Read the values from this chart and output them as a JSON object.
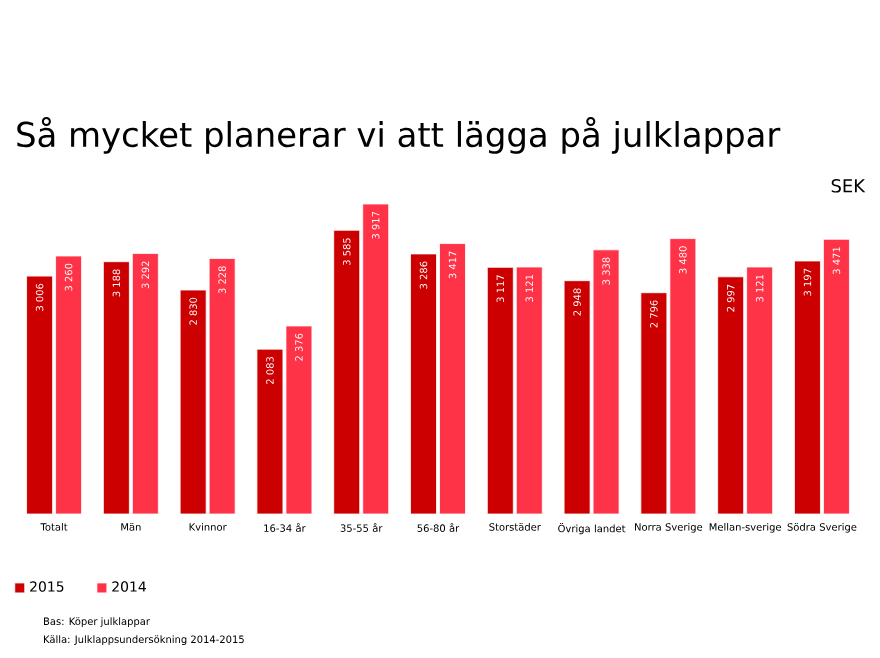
{
  "chart_data": {
    "type": "bar",
    "title": "Så mycket planerar vi att lägga på julklappar",
    "categories": [
      "Totalt",
      "Män",
      "Kvinnor",
      "16-34 år",
      "35-55 år",
      "56-80 år",
      "Storstäder",
      "Övriga landet",
      "Norra Sverige",
      "Mellan-sverige",
      "Södra Sverige"
    ],
    "series": [
      {
        "name": "2015",
        "color": "#cc0000",
        "values": [
          3006,
          3188,
          2830,
          2083,
          3585,
          3286,
          3117,
          2948,
          2796,
          2997,
          3197
        ],
        "value_labels": [
          "3 006",
          "3 188",
          "2 830",
          "2 083",
          "3 585",
          "3 286",
          "3 117",
          "2 948",
          "2 796",
          "2 997",
          "3 197"
        ]
      },
      {
        "name": "2014",
        "color": "#ff3347",
        "values": [
          3260,
          3292,
          3228,
          2376,
          3917,
          3417,
          3121,
          3338,
          3480,
          3121,
          3471
        ],
        "value_labels": [
          "3 260",
          "3 292",
          "3 228",
          "2 376",
          "3 917",
          "3 417",
          "3 121",
          "3 338",
          "3 480",
          "3 121",
          "3 471"
        ]
      }
    ],
    "annotations": [
      "SEK",
      "Bas: Köper julklappar",
      "Källa: Julklappsundersökning 2014-2015"
    ],
    "legend": "bottom left",
    "grid": false
  }
}
